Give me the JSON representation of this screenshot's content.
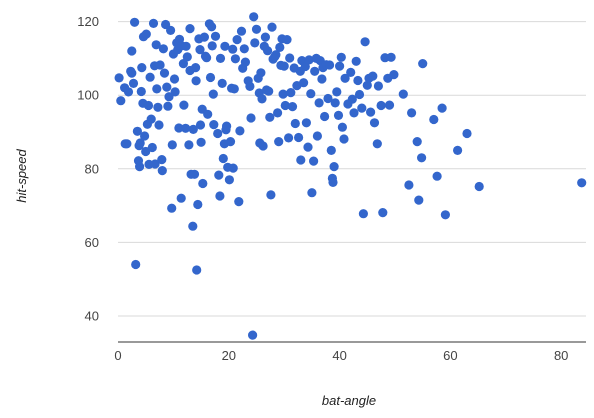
{
  "chart_data": {
    "type": "scatter",
    "title": "",
    "xlabel": "bat-angle",
    "ylabel": "hit-speed",
    "xlim": [
      0,
      85
    ],
    "ylim": [
      30,
      122
    ],
    "x_ticks": [
      0,
      20,
      40,
      60,
      80
    ],
    "y_ticks": [
      40,
      60,
      80,
      100,
      120
    ],
    "grid": {
      "x": false,
      "y": true
    },
    "color": "#3366cc",
    "series": [
      {
        "points": [
          [
            0.2,
            104.7
          ],
          [
            0.5,
            98.5
          ],
          [
            1.2,
            102
          ],
          [
            1.3,
            86.8
          ],
          [
            1.6,
            86.8
          ],
          [
            1.9,
            100.9
          ],
          [
            2.3,
            106.5
          ],
          [
            2.5,
            106
          ],
          [
            2.5,
            112
          ],
          [
            2.8,
            103.2
          ],
          [
            3,
            119.8
          ],
          [
            3.2,
            54
          ],
          [
            3.5,
            90.2
          ],
          [
            3.7,
            82.2
          ],
          [
            3.8,
            86.3
          ],
          [
            3.9,
            80.6
          ],
          [
            4,
            87
          ],
          [
            4.2,
            101
          ],
          [
            4.3,
            107.5
          ],
          [
            4.5,
            97.8
          ],
          [
            4.6,
            115.9
          ],
          [
            4.8,
            88.9
          ],
          [
            5,
            84.7
          ],
          [
            5.1,
            116.6
          ],
          [
            5.3,
            92.1
          ],
          [
            5.5,
            97.2
          ],
          [
            5.6,
            81.2
          ],
          [
            5.8,
            104.9
          ],
          [
            6,
            93.5
          ],
          [
            6.2,
            85.8
          ],
          [
            6.4,
            119.5
          ],
          [
            6.6,
            108
          ],
          [
            6.7,
            81.3
          ],
          [
            6.9,
            113.7
          ],
          [
            7,
            101.7
          ],
          [
            7.2,
            96.7
          ],
          [
            7.4,
            91.9
          ],
          [
            7.6,
            108.2
          ],
          [
            7.9,
            82.5
          ],
          [
            8,
            79.5
          ],
          [
            8.2,
            112.6
          ],
          [
            8.4,
            106
          ],
          [
            8.6,
            119.2
          ],
          [
            8.8,
            102.2
          ],
          [
            9,
            97
          ],
          [
            9.2,
            99.6
          ],
          [
            9.5,
            117.6
          ],
          [
            9.7,
            69.3
          ],
          [
            9.8,
            86.5
          ],
          [
            10,
            111.2
          ],
          [
            10.2,
            104.4
          ],
          [
            10.3,
            100.9
          ],
          [
            10.6,
            114.2
          ],
          [
            10.8,
            112.4
          ],
          [
            11,
            91.1
          ],
          [
            11.1,
            115.2
          ],
          [
            11.4,
            72
          ],
          [
            11.5,
            113.4
          ],
          [
            11.8,
            108.6
          ],
          [
            11.9,
            97.3
          ],
          [
            12.2,
            91
          ],
          [
            12.3,
            113.3
          ],
          [
            12.5,
            110.4
          ],
          [
            12.8,
            86.5
          ],
          [
            13,
            118.1
          ],
          [
            13,
            106.7
          ],
          [
            13.2,
            78.5
          ],
          [
            13.5,
            64.4
          ],
          [
            13.6,
            90.7
          ],
          [
            13.8,
            78.5
          ],
          [
            14,
            107.5
          ],
          [
            14.1,
            103.9
          ],
          [
            14.2,
            52.5
          ],
          [
            14.4,
            70.3
          ],
          [
            14.6,
            115.3
          ],
          [
            14.8,
            112.4
          ],
          [
            14.9,
            91.9
          ],
          [
            15,
            87.2
          ],
          [
            15.2,
            96.2
          ],
          [
            15.3,
            76
          ],
          [
            15.6,
            115.8
          ],
          [
            15.8,
            110.6
          ],
          [
            16,
            110.2
          ],
          [
            16.2,
            94.8
          ],
          [
            16.5,
            119.4
          ],
          [
            16.7,
            104.8
          ],
          [
            16.9,
            118.6
          ],
          [
            17,
            113.4
          ],
          [
            17.2,
            100.3
          ],
          [
            17.3,
            92
          ],
          [
            17.6,
            116
          ],
          [
            18,
            89.6
          ],
          [
            18.2,
            78.3
          ],
          [
            18.4,
            72.6
          ],
          [
            18.5,
            110
          ],
          [
            18.8,
            103.2
          ],
          [
            19,
            82.8
          ],
          [
            19.2,
            86.8
          ],
          [
            19.3,
            113.3
          ],
          [
            19.5,
            90.6
          ],
          [
            19.6,
            91.6
          ],
          [
            19.8,
            80.4
          ],
          [
            20.1,
            77
          ],
          [
            20.3,
            87.4
          ],
          [
            20.5,
            101.9
          ],
          [
            20.7,
            112.5
          ],
          [
            20.8,
            80.2
          ],
          [
            21,
            101.7
          ],
          [
            21.2,
            109.9
          ],
          [
            21.5,
            115.1
          ],
          [
            21.8,
            71.1
          ],
          [
            22,
            90.3
          ],
          [
            22.3,
            117.4
          ],
          [
            22.5,
            107.3
          ],
          [
            22.8,
            112.6
          ],
          [
            23,
            109
          ],
          [
            23.5,
            103.9
          ],
          [
            23.8,
            102.4
          ],
          [
            24,
            93.8
          ],
          [
            24.3,
            34.8
          ],
          [
            24.5,
            121.3
          ],
          [
            24.7,
            114.2
          ],
          [
            25,
            117.9
          ],
          [
            25.3,
            104.6
          ],
          [
            25.5,
            100.6
          ],
          [
            25.6,
            87
          ],
          [
            25.8,
            106.1
          ],
          [
            26,
            99
          ],
          [
            26.2,
            86.2
          ],
          [
            26.4,
            113.3
          ],
          [
            26.6,
            115.8
          ],
          [
            26.8,
            101.4
          ],
          [
            27,
            112.1
          ],
          [
            27.2,
            101.1
          ],
          [
            27.4,
            94
          ],
          [
            27.6,
            72.9
          ],
          [
            27.8,
            118.5
          ],
          [
            28,
            109.8
          ],
          [
            28.3,
            110.5
          ],
          [
            28.5,
            111
          ],
          [
            28.8,
            95.2
          ],
          [
            29,
            87.4
          ],
          [
            29.2,
            113
          ],
          [
            29.4,
            108.1
          ],
          [
            29.6,
            115.3
          ],
          [
            29.8,
            100.3
          ],
          [
            30,
            107.9
          ],
          [
            30.2,
            97.2
          ],
          [
            30.5,
            115.1
          ],
          [
            30.8,
            88.4
          ],
          [
            31,
            110.1
          ],
          [
            31.2,
            100.7
          ],
          [
            31.5,
            96.9
          ],
          [
            31.8,
            107.4
          ],
          [
            32,
            92.3
          ],
          [
            32.3,
            102.6
          ],
          [
            32.6,
            88.5
          ],
          [
            32.9,
            106.5
          ],
          [
            33,
            82.4
          ],
          [
            33.2,
            109.4
          ],
          [
            33.5,
            103.4
          ],
          [
            33.8,
            107.8
          ],
          [
            34,
            92.5
          ],
          [
            34.3,
            85.9
          ],
          [
            34.5,
            109.6
          ],
          [
            34.8,
            100.4
          ],
          [
            35,
            73.5
          ],
          [
            35.3,
            82.1
          ],
          [
            35.5,
            106.5
          ],
          [
            35.8,
            110
          ],
          [
            36,
            88.9
          ],
          [
            36.3,
            97.9
          ],
          [
            36.5,
            109.4
          ],
          [
            36.8,
            104.4
          ],
          [
            37,
            107.5
          ],
          [
            37.3,
            94.2
          ],
          [
            37.6,
            108.3
          ],
          [
            37.9,
            99.1
          ],
          [
            38.2,
            108.2
          ],
          [
            38.5,
            85
          ],
          [
            38.7,
            77.4
          ],
          [
            38.8,
            76.3
          ],
          [
            39,
            80.6
          ],
          [
            39.2,
            97.9
          ],
          [
            39.5,
            100.9
          ],
          [
            39.8,
            94.5
          ],
          [
            40,
            107.9
          ],
          [
            40.3,
            110.3
          ],
          [
            40.5,
            91.3
          ],
          [
            40.8,
            88.1
          ],
          [
            41,
            104.6
          ],
          [
            41.5,
            97.6
          ],
          [
            42,
            106.2
          ],
          [
            42.3,
            98.9
          ],
          [
            42.6,
            95.2
          ],
          [
            43,
            109.2
          ],
          [
            43.3,
            104
          ],
          [
            43.6,
            100.2
          ],
          [
            44,
            96.5
          ],
          [
            44.3,
            67.8
          ],
          [
            44.6,
            114.5
          ],
          [
            45,
            102.7
          ],
          [
            45.3,
            104.6
          ],
          [
            45.6,
            95.4
          ],
          [
            46,
            105.2
          ],
          [
            46.3,
            92.5
          ],
          [
            46.8,
            86.8
          ],
          [
            47,
            102.5
          ],
          [
            47.5,
            97.2
          ],
          [
            47.8,
            68.1
          ],
          [
            48.2,
            110.2
          ],
          [
            48.7,
            104.6
          ],
          [
            49,
            97.3
          ],
          [
            49.3,
            110.3
          ],
          [
            49.8,
            105.6
          ],
          [
            51.5,
            100.3
          ],
          [
            52.5,
            75.6
          ],
          [
            53,
            95.2
          ],
          [
            54,
            87.4
          ],
          [
            54.3,
            71.5
          ],
          [
            54.8,
            83
          ],
          [
            55,
            108.6
          ],
          [
            57,
            93.4
          ],
          [
            57.6,
            78
          ],
          [
            58.5,
            96.5
          ],
          [
            59.1,
            67.5
          ],
          [
            61.3,
            85
          ],
          [
            63,
            89.6
          ],
          [
            65.2,
            75.2
          ],
          [
            83.7,
            76.2
          ]
        ]
      }
    ]
  }
}
